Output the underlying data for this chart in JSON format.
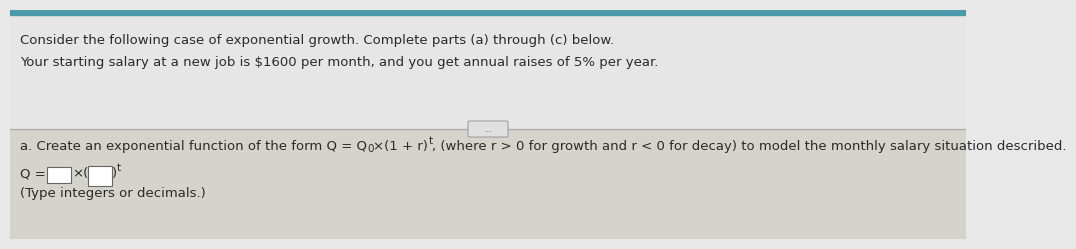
{
  "bg_top": "#e8e8e8",
  "bg_bottom": "#d0cfc8",
  "teal_bar_color": "#4a9aaa",
  "line1": "Consider the following case of exponential growth. Complete parts (a) through (c) below.",
  "line2": "Your starting salary at a new job is $1600 per month, and you get annual raises of 5% per year.",
  "section_a_pre": "a. Create an exponential function of the form Q = Q",
  "section_a_sub0": "0",
  "section_a_mid": "×(1 + r)",
  "section_a_supt": "t",
  "section_a_end": ", (where r > 0 for growth and r < 0 for decay) to model the monthly salary situation described.",
  "formula_pre": "Q =",
  "formula_times": "×(",
  "formula_close": ")",
  "formula_supt": "t",
  "hint": "(Type integers or decimals.)",
  "divider_color": "#aaaaaa",
  "text_color": "#2a2a2a",
  "font_size_main": 9.5,
  "font_size_small": 7.5,
  "box_color": "#ffffff",
  "box_edge": "#666666",
  "dots_text": "..."
}
